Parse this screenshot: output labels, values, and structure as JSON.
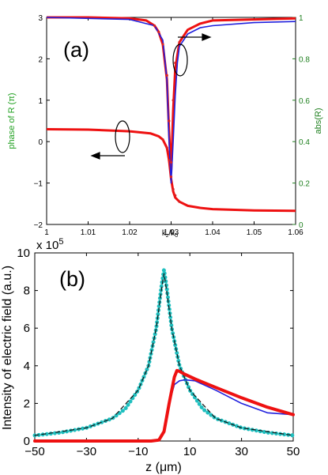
{
  "chart_data": [
    {
      "type": "line",
      "panel_label": "(a)",
      "xlabel": "k_z/k_0",
      "ylabel_left": "phase of R (π)",
      "ylabel_right": "abs(R)",
      "xlim": [
        1.0,
        1.06
      ],
      "ylim_left": [
        -2,
        3
      ],
      "ylim_right": [
        0,
        1
      ],
      "xticks": [
        "1",
        "1.01",
        "1.02",
        "1.03",
        "1.04",
        "1.05",
        "1.06"
      ],
      "yticks_left": [
        "−2",
        "−1",
        "0",
        "1",
        "2",
        "3"
      ],
      "yticks_right": [
        "0",
        "0.2",
        "0.4",
        "0.6",
        "0.8",
        "1"
      ],
      "grid": false,
      "colors": {
        "left_axis_label": "#20a020",
        "right_axis": "#208020",
        "line_red": "#ee1111",
        "line_blue": "#2020dd",
        "dots": "#dd2020"
      },
      "series": [
        {
          "axis": "left",
          "color": "#ee1111",
          "style": "solid",
          "x": [
            1.0,
            1.01,
            1.02,
            1.025,
            1.027,
            1.028,
            1.029,
            1.0295,
            1.03,
            1.0305,
            1.031,
            1.032,
            1.034,
            1.037,
            1.04,
            1.05,
            1.06
          ],
          "y": [
            0.3,
            0.29,
            0.25,
            0.2,
            0.13,
            0.05,
            -0.15,
            -0.45,
            -0.9,
            -1.2,
            -1.35,
            -1.45,
            -1.55,
            -1.6,
            -1.63,
            -1.66,
            -1.67
          ]
        },
        {
          "axis": "right",
          "color": "#ee1111",
          "style": "solid",
          "x": [
            1.0,
            1.01,
            1.02,
            1.024,
            1.026,
            1.027,
            1.028,
            1.029,
            1.0295,
            1.03,
            1.0305,
            1.031,
            1.032,
            1.034,
            1.037,
            1.04,
            1.05,
            1.06
          ],
          "y": [
            1.0,
            1.0,
            0.995,
            0.985,
            0.96,
            0.93,
            0.87,
            0.7,
            0.45,
            0.25,
            0.55,
            0.75,
            0.88,
            0.94,
            0.97,
            0.985,
            0.99,
            0.995
          ]
        },
        {
          "axis": "right",
          "color": "#2020dd",
          "style": "solid",
          "x": [
            1.0,
            1.02,
            1.026,
            1.028,
            1.029,
            1.0295,
            1.03,
            1.0305,
            1.031,
            1.0315,
            1.032,
            1.034,
            1.037,
            1.04,
            1.05,
            1.06
          ],
          "y": [
            1.0,
            0.99,
            0.96,
            0.89,
            0.7,
            0.4,
            0.2,
            0.4,
            0.62,
            0.78,
            0.86,
            0.92,
            0.95,
            0.96,
            0.975,
            0.98
          ]
        },
        {
          "axis": "right",
          "color": "#dd2020",
          "style": "dots",
          "x": [
            1.026,
            1.027,
            1.028,
            1.029,
            1.0295,
            1.03,
            1.0305,
            1.031,
            1.032
          ],
          "y": [
            0.96,
            0.93,
            0.87,
            0.72,
            0.5,
            0.3,
            0.6,
            0.78,
            0.88
          ]
        },
        {
          "axis": "left",
          "color": "#dd2020",
          "style": "dots",
          "x": [
            1.028,
            1.029,
            1.0295,
            1.03,
            1.0305,
            1.031,
            1.032
          ],
          "y": [
            0.05,
            -0.15,
            -0.45,
            -0.85,
            -1.15,
            -1.3,
            -1.45
          ]
        }
      ]
    },
    {
      "type": "line",
      "panel_label": "(b)",
      "xlabel": "z (μm)",
      "ylabel": "Intensity of electric field (a.u.)",
      "multiplier": "x 10",
      "multiplier_exp": "5",
      "xlim": [
        -50,
        50
      ],
      "ylim": [
        0,
        10
      ],
      "xticks": [
        "−50",
        "−30",
        "−10",
        "10",
        "30",
        "50"
      ],
      "yticks": [
        "0",
        "2",
        "4",
        "6",
        "8",
        "10"
      ],
      "grid": false,
      "series": [
        {
          "color": "#1fbfbf",
          "style": "thick-dotted",
          "x": [
            -50,
            -40,
            -30,
            -20,
            -15,
            -10,
            -6,
            -3,
            -1,
            0,
            1,
            3,
            6,
            10,
            15,
            20,
            30,
            40,
            50
          ],
          "y": [
            0.3,
            0.45,
            0.7,
            1.2,
            1.7,
            2.7,
            4.0,
            6.0,
            8.2,
            9.1,
            8.2,
            6.0,
            4.0,
            2.7,
            1.7,
            1.2,
            0.7,
            0.45,
            0.3
          ]
        },
        {
          "color": "#111111",
          "style": "dashed",
          "x": [
            -50,
            -30,
            -20,
            -10,
            -6,
            -3,
            -1,
            0,
            1,
            3,
            6,
            10,
            20,
            30,
            50
          ],
          "y": [
            0.3,
            0.7,
            1.2,
            2.7,
            4.0,
            6.0,
            8.0,
            8.9,
            8.0,
            6.0,
            4.0,
            2.7,
            1.2,
            0.7,
            0.3
          ]
        },
        {
          "color": "#2020dd",
          "style": "solid",
          "x": [
            -50,
            -5,
            -2,
            0,
            2,
            4,
            6,
            8,
            12,
            20,
            30,
            40,
            50
          ],
          "y": [
            0,
            0,
            0.05,
            0.5,
            2.0,
            3.0,
            3.2,
            3.25,
            3.2,
            2.7,
            2.0,
            1.5,
            1.4
          ]
        },
        {
          "color": "#ee1111",
          "style": "thick",
          "x": [
            -50,
            -5,
            -2,
            0,
            2,
            4,
            5,
            6,
            8,
            12,
            20,
            30,
            40,
            50
          ],
          "y": [
            0,
            0,
            0.05,
            0.5,
            2.0,
            3.4,
            3.75,
            3.7,
            3.55,
            3.3,
            2.85,
            2.3,
            1.8,
            1.4
          ]
        }
      ]
    }
  ]
}
